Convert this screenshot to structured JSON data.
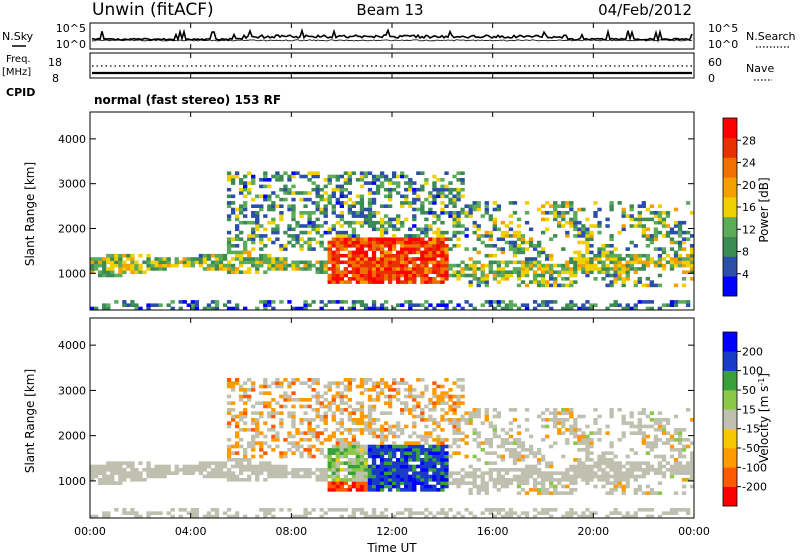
{
  "header": {
    "station": "Unwin (fitACF)",
    "beam": "Beam 13",
    "date": "04/Feb/2012"
  },
  "panels": {
    "nsky_label": "N.Sky",
    "nsearch_label": "N.Search",
    "noise_ticks_left": [
      "10^5",
      "10^0"
    ],
    "noise_ticks_right": [
      "10^5",
      "10^0"
    ],
    "freq_label": "Freq.",
    "freq_unit": "[MHz]",
    "freq_ticks": [
      "18",
      "8"
    ],
    "nave_label": "Nave",
    "nave_ticks": [
      "60",
      "0"
    ],
    "cpid_label": "CPID",
    "cpid_text": "normal (fast stereo) 153 RF"
  },
  "colors": {
    "power_scale": [
      "#0000ff",
      "#2b4fa8",
      "#3c8a54",
      "#5cab5a",
      "#f0d000",
      "#f5a000",
      "#f07000",
      "#e83000",
      "#ff0000"
    ],
    "velocity_scale": [
      "#ff0000",
      "#ff5a00",
      "#ff9a00",
      "#f5c800",
      "#c0c0b0",
      "#8ac84a",
      "#3aa03a",
      "#1a3ac8",
      "#0000ff"
    ]
  },
  "chart_data": [
    {
      "type": "heatmap",
      "title": "Power",
      "ylabel": "Slant Range [km]",
      "xlabel": "Time UT",
      "x_ticks": [
        "00:00",
        "04:00",
        "08:00",
        "12:00",
        "16:00",
        "20:00",
        "00:00"
      ],
      "y_ticks": [
        "4000",
        "3000",
        "2000",
        "1000"
      ],
      "ylim": [
        180,
        4600
      ],
      "xlim_hours": [
        0,
        24
      ],
      "colorbar": {
        "label": "Power [dB]",
        "ticks": [
          "28",
          "24",
          "20",
          "16",
          "12",
          "8",
          "4"
        ],
        "range": [
          0,
          32
        ]
      }
    },
    {
      "type": "heatmap",
      "title": "Velocity",
      "ylabel": "Slant Range [km]",
      "xlabel": "Time UT",
      "x_ticks": [
        "00:00",
        "04:00",
        "08:00",
        "12:00",
        "16:00",
        "20:00",
        "00:00"
      ],
      "y_ticks": [
        "4000",
        "3000",
        "2000",
        "1000"
      ],
      "ylim": [
        180,
        4600
      ],
      "xlim_hours": [
        0,
        24
      ],
      "colorbar": {
        "label": "Velocity [m s^-1]",
        "ticks": [
          "200",
          "100",
          "50",
          "15",
          "-15",
          "-50",
          "-100",
          "-200"
        ]
      }
    }
  ]
}
